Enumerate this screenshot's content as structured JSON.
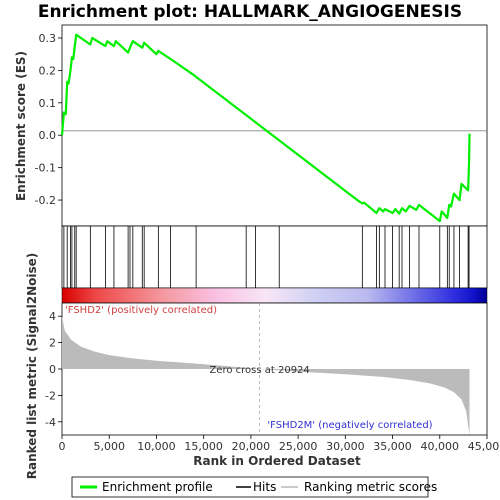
{
  "chart_data": {
    "type": "line",
    "title": "Enrichment plot: HALLMARK_ANGIOGENESIS",
    "xlabel": "Rank in Ordered Dataset",
    "xlim": [
      0,
      45000
    ],
    "x_ticks": [
      0,
      5000,
      10000,
      15000,
      20000,
      25000,
      30000,
      35000,
      40000,
      45000
    ],
    "x_tick_labels": [
      "0",
      "5,000",
      "10,000",
      "15,000",
      "20,000",
      "25,000",
      "30,000",
      "35,000",
      "40,000",
      "45,000"
    ],
    "es_panel": {
      "ylabel": "Enrichment score (ES)",
      "ylim": [
        -0.28,
        0.34
      ],
      "y_ticks": [
        -0.2,
        -0.1,
        0.0,
        0.1,
        0.2,
        0.3
      ],
      "y_tick_labels": [
        "-0.2",
        "-0.1",
        "0.0",
        "0.1",
        "0.2",
        "0.3"
      ],
      "series": {
        "name": "Enrichment profile",
        "color": "#00ee00",
        "points": [
          [
            0,
            0.0
          ],
          [
            200,
            0.07
          ],
          [
            400,
            0.065
          ],
          [
            550,
            0.165
          ],
          [
            700,
            0.16
          ],
          [
            900,
            0.2
          ],
          [
            1050,
            0.24
          ],
          [
            1200,
            0.235
          ],
          [
            1350,
            0.275
          ],
          [
            1500,
            0.31
          ],
          [
            3000,
            0.28
          ],
          [
            3200,
            0.3
          ],
          [
            4600,
            0.275
          ],
          [
            4800,
            0.29
          ],
          [
            5500,
            0.275
          ],
          [
            5700,
            0.29
          ],
          [
            7000,
            0.255
          ],
          [
            7200,
            0.27
          ],
          [
            7500,
            0.29
          ],
          [
            8500,
            0.27
          ],
          [
            8700,
            0.285
          ],
          [
            10000,
            0.25
          ],
          [
            10200,
            0.26
          ],
          [
            11500,
            0.235
          ],
          [
            14000,
            0.185
          ],
          [
            14200,
            0.18
          ],
          [
            31500,
            -0.205
          ],
          [
            31800,
            -0.21
          ],
          [
            32000,
            -0.208
          ],
          [
            33300,
            -0.24
          ],
          [
            33600,
            -0.225
          ],
          [
            34000,
            -0.235
          ],
          [
            34200,
            -0.228
          ],
          [
            35000,
            -0.24
          ],
          [
            35300,
            -0.228
          ],
          [
            35700,
            -0.242
          ],
          [
            36000,
            -0.225
          ],
          [
            36400,
            -0.235
          ],
          [
            36800,
            -0.218
          ],
          [
            37500,
            -0.23
          ],
          [
            37800,
            -0.215
          ],
          [
            40000,
            -0.265
          ],
          [
            40200,
            -0.235
          ],
          [
            40800,
            -0.255
          ],
          [
            41000,
            -0.215
          ],
          [
            41200,
            -0.22
          ],
          [
            41500,
            -0.18
          ],
          [
            42100,
            -0.2
          ],
          [
            42300,
            -0.15
          ],
          [
            43000,
            -0.17
          ],
          [
            43100,
            -0.08
          ],
          [
            43150,
            0.005
          ]
        ]
      }
    },
    "hits": {
      "name": "Hits",
      "color": "#000000",
      "ranks": [
        200,
        550,
        900,
        1050,
        1350,
        1500,
        3000,
        4600,
        5500,
        7000,
        7200,
        7500,
        8500,
        8700,
        10200,
        11500,
        14200,
        19500,
        20500,
        23000,
        31800,
        33300,
        33600,
        34200,
        35000,
        35700,
        36000,
        36800,
        37800,
        40000,
        40800,
        41000,
        41500,
        42100,
        43000,
        43100
      ]
    },
    "metric_panel": {
      "ylabel": "Ranked list metric (Signal2Noise)",
      "ylim": [
        -5,
        5
      ],
      "y_ticks": [
        -4,
        -2,
        0,
        2,
        4
      ],
      "y_tick_labels": [
        "-4",
        "-2",
        "0",
        "2",
        "4"
      ],
      "series": {
        "name": "Ranking metric scores",
        "color": "#bbbbbb",
        "points": [
          [
            0,
            4.0
          ],
          [
            300,
            2.9
          ],
          [
            1000,
            2.2
          ],
          [
            2000,
            1.7
          ],
          [
            3500,
            1.3
          ],
          [
            5000,
            1.05
          ],
          [
            7500,
            0.8
          ],
          [
            10000,
            0.62
          ],
          [
            14000,
            0.42
          ],
          [
            17000,
            0.25
          ],
          [
            20924,
            0.0
          ],
          [
            25000,
            -0.2
          ],
          [
            30000,
            -0.4
          ],
          [
            34000,
            -0.6
          ],
          [
            37000,
            -0.85
          ],
          [
            39000,
            -1.1
          ],
          [
            40500,
            -1.4
          ],
          [
            41500,
            -1.75
          ],
          [
            42300,
            -2.3
          ],
          [
            42800,
            -3.2
          ],
          [
            43150,
            -5.0
          ]
        ]
      }
    },
    "zero_cross_rank": 20924,
    "annotations": {
      "positive": "'FSHD2' (positively correlated)",
      "negative": "'FSHD2M' (negatively correlated)",
      "zero_cross": "Zero cross at 20924"
    },
    "legend": {
      "position": "bottom",
      "items": [
        "Enrichment profile",
        "Hits",
        "Ranking metric scores"
      ]
    },
    "grid": false
  }
}
